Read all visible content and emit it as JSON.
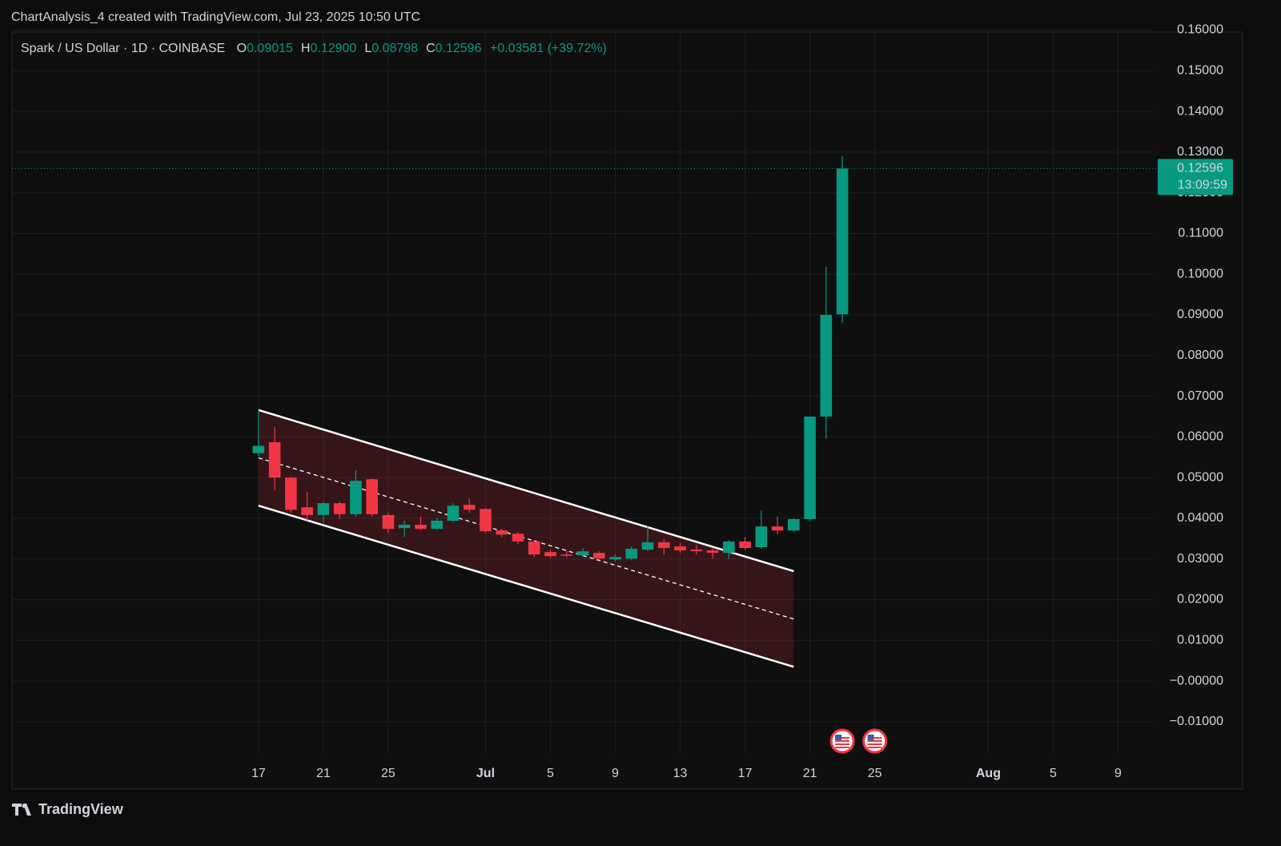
{
  "header": "ChartAnalysis_4 created with TradingView.com, Jul 23, 2025 10:50 UTC",
  "footer": "TradingView",
  "chart_data": {
    "type": "candlestick",
    "title": "Spark / US Dollar · 1D · COINBASE",
    "ohlc_legend": [
      {
        "key": "O",
        "value": "0.09015"
      },
      {
        "key": "H",
        "value": "0.12900"
      },
      {
        "key": "L",
        "value": "0.08798"
      },
      {
        "key": "C",
        "value": "0.12596"
      }
    ],
    "change": "+0.03581 (+39.72%)",
    "up_color": "#089981",
    "down_color": "#f23645",
    "x": [
      "2025-06-17",
      "2025-06-18",
      "2025-06-19",
      "2025-06-20",
      "2025-06-21",
      "2025-06-22",
      "2025-06-23",
      "2025-06-24",
      "2025-06-25",
      "2025-06-26",
      "2025-06-27",
      "2025-06-28",
      "2025-06-29",
      "2025-06-30",
      "2025-07-01",
      "2025-07-02",
      "2025-07-03",
      "2025-07-04",
      "2025-07-05",
      "2025-07-06",
      "2025-07-07",
      "2025-07-08",
      "2025-07-09",
      "2025-07-10",
      "2025-07-11",
      "2025-07-12",
      "2025-07-13",
      "2025-07-14",
      "2025-07-15",
      "2025-07-16",
      "2025-07-17",
      "2025-07-18",
      "2025-07-19",
      "2025-07-20",
      "2025-07-21",
      "2025-07-22",
      "2025-07-23"
    ],
    "open": [
      0.056,
      0.0587,
      0.05,
      0.0427,
      0.0408,
      0.0437,
      0.041,
      0.0496,
      0.0408,
      0.0376,
      0.0384,
      0.0374,
      0.0394,
      0.0433,
      0.0423,
      0.037,
      0.0362,
      0.0343,
      0.0317,
      0.0311,
      0.0309,
      0.0315,
      0.0299,
      0.0301,
      0.0323,
      0.0341,
      0.0331,
      0.0323,
      0.0321,
      0.0315,
      0.0343,
      0.0329,
      0.038,
      0.037,
      0.0398,
      0.065,
      0.09015
    ],
    "high": [
      0.0668,
      0.0624,
      0.0502,
      0.0465,
      0.0441,
      0.0441,
      0.0518,
      0.0498,
      0.0414,
      0.0394,
      0.0404,
      0.04,
      0.0437,
      0.0449,
      0.0425,
      0.0374,
      0.0366,
      0.0347,
      0.0323,
      0.0319,
      0.0327,
      0.0319,
      0.0311,
      0.0331,
      0.038,
      0.0349,
      0.0339,
      0.0335,
      0.0329,
      0.0347,
      0.0354,
      0.0419,
      0.0404,
      0.04,
      0.065,
      0.1018,
      0.129
    ],
    "low": [
      0.0553,
      0.0469,
      0.0414,
      0.0394,
      0.039,
      0.0398,
      0.0404,
      0.0404,
      0.0364,
      0.0354,
      0.037,
      0.0372,
      0.039,
      0.0414,
      0.0364,
      0.0354,
      0.0337,
      0.0305,
      0.0303,
      0.0303,
      0.0305,
      0.0297,
      0.0295,
      0.0297,
      0.0319,
      0.0311,
      0.0315,
      0.0311,
      0.0301,
      0.0301,
      0.0323,
      0.0325,
      0.036,
      0.0366,
      0.0394,
      0.0595,
      0.08798
    ],
    "close": [
      0.0578,
      0.05,
      0.0421,
      0.0408,
      0.0437,
      0.041,
      0.0492,
      0.041,
      0.0374,
      0.0384,
      0.0374,
      0.0394,
      0.0431,
      0.0421,
      0.0368,
      0.036,
      0.0343,
      0.0311,
      0.0307,
      0.0309,
      0.0319,
      0.0301,
      0.0305,
      0.0325,
      0.0341,
      0.0327,
      0.0321,
      0.0319,
      0.0315,
      0.0343,
      0.0327,
      0.038,
      0.037,
      0.0398,
      0.065,
      0.09,
      0.12596
    ],
    "channel": {
      "start": "2025-06-17",
      "end": "2025-07-20",
      "upper": [
        0.0666,
        0.027
      ],
      "lower": [
        0.0431,
        0.0035
      ],
      "color": "#f23645"
    },
    "last_price": {
      "value": 0.12596,
      "label": "0.12596",
      "countdown": "13:09:59"
    },
    "events": [
      "2025-07-23",
      "2025-07-25"
    ],
    "xlim": [
      "2025-06-02",
      "2025-08-11"
    ],
    "xticks": [
      {
        "value": "2025-06-17",
        "label": "17"
      },
      {
        "value": "2025-06-21",
        "label": "21"
      },
      {
        "value": "2025-06-25",
        "label": "25"
      },
      {
        "value": "2025-07-01",
        "label": "Jul"
      },
      {
        "value": "2025-07-05",
        "label": "5"
      },
      {
        "value": "2025-07-09",
        "label": "9"
      },
      {
        "value": "2025-07-13",
        "label": "13"
      },
      {
        "value": "2025-07-17",
        "label": "17"
      },
      {
        "value": "2025-07-21",
        "label": "21"
      },
      {
        "value": "2025-07-25",
        "label": "25"
      },
      {
        "value": "2025-08-01",
        "label": "Aug"
      },
      {
        "value": "2025-08-05",
        "label": "5"
      },
      {
        "value": "2025-08-09",
        "label": "9"
      }
    ],
    "ylim": [
      -0.0177,
      0.1595
    ],
    "yticks": [
      {
        "value": 0.16,
        "label": "0.16000"
      },
      {
        "value": 0.15,
        "label": "0.15000"
      },
      {
        "value": 0.14,
        "label": "0.14000"
      },
      {
        "value": 0.13,
        "label": "0.13000"
      },
      {
        "value": 0.12,
        "label": "0.12000"
      },
      {
        "value": 0.11,
        "label": "0.11000"
      },
      {
        "value": 0.1,
        "label": "0.10000"
      },
      {
        "value": 0.09,
        "label": "0.09000"
      },
      {
        "value": 0.08,
        "label": "0.08000"
      },
      {
        "value": 0.07,
        "label": "0.07000"
      },
      {
        "value": 0.06,
        "label": "0.06000"
      },
      {
        "value": 0.05,
        "label": "0.05000"
      },
      {
        "value": 0.04,
        "label": "0.04000"
      },
      {
        "value": 0.03,
        "label": "0.03000"
      },
      {
        "value": 0.02,
        "label": "0.02000"
      },
      {
        "value": 0.01,
        "label": "0.01000"
      },
      {
        "value": 0,
        "label": "−0.00000"
      },
      {
        "value": -0.01,
        "label": "−0.01000"
      }
    ],
    "grid": true
  }
}
